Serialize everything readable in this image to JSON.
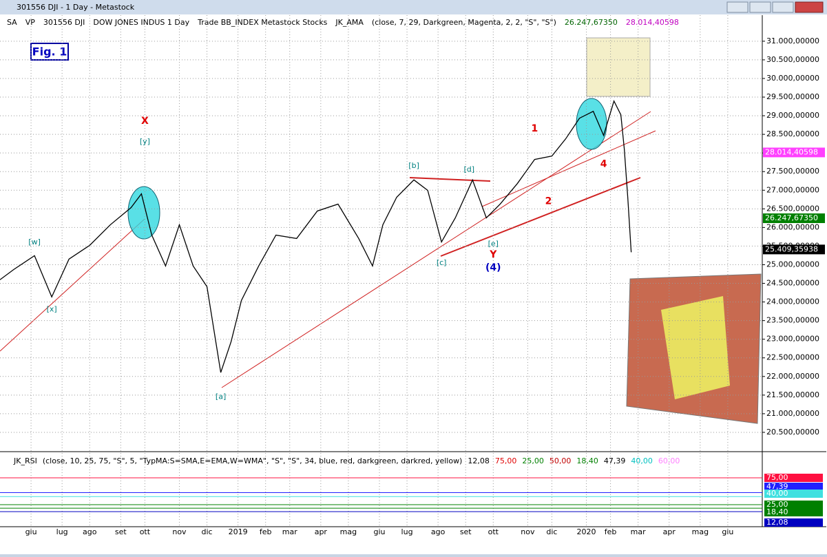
{
  "window": {
    "title": "301556 DJI - 1 Day - Metastock"
  },
  "toolbar": {
    "items": [
      {
        "text": "SA",
        "color": "#000000"
      },
      {
        "text": "VP",
        "color": "#000000"
      },
      {
        "text": "301556 DJI",
        "color": "#000000"
      },
      {
        "text": "DOW JONES INDUS 1 Day",
        "color": "#000000"
      },
      {
        "text": "Trade BB_INDEX Metastock Stocks",
        "color": "#000000"
      },
      {
        "text": "JK_AMA",
        "color": "#000000"
      },
      {
        "text": "(close, 7, 29, Darkgreen, Magenta, 2, 2, \"S\", \"S\")",
        "color": "#000000"
      },
      {
        "text": "26.247,67350",
        "color": "#006400"
      },
      {
        "text": "28.014,40598",
        "color": "#c000c0"
      }
    ]
  },
  "chart": {
    "type": "line",
    "fig_label": "Fig. 1",
    "x": [
      0,
      4,
      10,
      15,
      20,
      26,
      32,
      38,
      41,
      44,
      48,
      52,
      56,
      60,
      64,
      67,
      70,
      75,
      80,
      86,
      92,
      98,
      104,
      108,
      111,
      115,
      120,
      124,
      128,
      132,
      137,
      141,
      145,
      150,
      155,
      160,
      164,
      168,
      172,
      175,
      178,
      180,
      181,
      182,
      183
    ],
    "values": [
      24597,
      24873,
      25242,
      24135,
      25150,
      25520,
      26073,
      26534,
      26903,
      25796,
      24966,
      26073,
      24966,
      24412,
      22106,
      22935,
      24043,
      24966,
      25796,
      25704,
      26442,
      26627,
      25704,
      24966,
      26073,
      26811,
      27277,
      26996,
      25611,
      26257,
      27277,
      26257,
      26627,
      27180,
      27826,
      27918,
      28379,
      28933,
      29118,
      28471,
      29395,
      29026,
      28103,
      26811,
      25335
    ],
    "color": "#000000",
    "xlim": [
      0,
      221
    ],
    "ylim": [
      20000,
      31700
    ],
    "yticks": [
      {
        "value": 20500,
        "label": "20.500,00000"
      },
      {
        "value": 21000,
        "label": "21.000,00000"
      },
      {
        "value": 21500,
        "label": "21.500,00000"
      },
      {
        "value": 22000,
        "label": "22.000,00000"
      },
      {
        "value": 22500,
        "label": "22.500,00000"
      },
      {
        "value": 23000,
        "label": "23.000,00000"
      },
      {
        "value": 23500,
        "label": "23.500,00000"
      },
      {
        "value": 24000,
        "label": "24.000,00000"
      },
      {
        "value": 24500,
        "label": "24.500,00000"
      },
      {
        "value": 25000,
        "label": "25.000,00000"
      },
      {
        "value": 25500,
        "label": "25.500,00000"
      },
      {
        "value": 26000,
        "label": "26.000,00000"
      },
      {
        "value": 26500,
        "label": "26.500,00000"
      },
      {
        "value": 27000,
        "label": "27.000,00000"
      },
      {
        "value": 27500,
        "label": "27.500,00000"
      },
      {
        "value": 28000,
        "label": "28.000,00000"
      },
      {
        "value": 28500,
        "label": "28.500,00000"
      },
      {
        "value": 29000,
        "label": "29.000,00000"
      },
      {
        "value": 29500,
        "label": "29.500,00000"
      },
      {
        "value": 30000,
        "label": "30.000,00000"
      },
      {
        "value": 30500,
        "label": "30.500,00000"
      },
      {
        "value": 31000,
        "label": "31.000,00000"
      }
    ],
    "price_flags": [
      {
        "value": 28014.40598,
        "label": "28.014,40598",
        "color": "#ff40ff"
      },
      {
        "value": 26247.6735,
        "label": "26.247,67350",
        "color": "#008000"
      },
      {
        "value": 25409.35938,
        "label": "25.409,35938",
        "color": "#000000"
      }
    ],
    "xticks": [
      {
        "value": 9,
        "label": "giu"
      },
      {
        "value": 18,
        "label": "lug"
      },
      {
        "value": 26,
        "label": "ago"
      },
      {
        "value": 35,
        "label": "set"
      },
      {
        "value": 42,
        "label": "ott"
      },
      {
        "value": 52,
        "label": "nov"
      },
      {
        "value": 60,
        "label": "dic"
      },
      {
        "value": 69,
        "label": "2019"
      },
      {
        "value": 77,
        "label": "feb"
      },
      {
        "value": 84,
        "label": "mar"
      },
      {
        "value": 93,
        "label": "apr"
      },
      {
        "value": 101,
        "label": "mag"
      },
      {
        "value": 110,
        "label": "giu"
      },
      {
        "value": 118,
        "label": "lug"
      },
      {
        "value": 127,
        "label": "ago"
      },
      {
        "value": 135,
        "label": "set"
      },
      {
        "value": 143,
        "label": "ott"
      },
      {
        "value": 153,
        "label": "nov"
      },
      {
        "value": 160,
        "label": "dic"
      },
      {
        "value": 170,
        "label": "2020"
      },
      {
        "value": 177,
        "label": "feb"
      },
      {
        "value": 185,
        "label": "mar"
      },
      {
        "value": 194,
        "label": "apr"
      },
      {
        "value": 203,
        "label": "mag"
      },
      {
        "value": 211,
        "label": "giu"
      }
    ],
    "annotations": [
      {
        "text": "X",
        "x": 42,
        "y": 28850,
        "color": "#e00000"
      },
      {
        "text": "[y]",
        "x": 42,
        "y": 28300,
        "color": "#008080"
      },
      {
        "text": "[w]",
        "x": 10,
        "y": 25600,
        "color": "#008080"
      },
      {
        "text": "[x]",
        "x": 15,
        "y": 23800,
        "color": "#008080"
      },
      {
        "text": "[a]",
        "x": 64,
        "y": 21450,
        "color": "#008080"
      },
      {
        "text": "[b]",
        "x": 120,
        "y": 27650,
        "color": "#008080"
      },
      {
        "text": "[c]",
        "x": 128,
        "y": 25050,
        "color": "#008080"
      },
      {
        "text": "[d]",
        "x": 136,
        "y": 27550,
        "color": "#008080"
      },
      {
        "text": "[e]",
        "x": 143,
        "y": 25550,
        "color": "#008080"
      },
      {
        "text": "Y",
        "x": 143,
        "y": 25270,
        "color": "#e00000"
      },
      {
        "text": "(4)",
        "x": 143,
        "y": 24920,
        "color": "#0000c0"
      },
      {
        "text": "1",
        "x": 155,
        "y": 28650,
        "color": "#e00000"
      },
      {
        "text": "2",
        "x": 159,
        "y": 26700,
        "color": "#e00000"
      },
      {
        "text": "4",
        "x": 175,
        "y": 27700,
        "color": "#e00000"
      }
    ]
  },
  "rsi": {
    "header": [
      {
        "text": "JK_RSI",
        "color": "#000000"
      },
      {
        "text": "(close, 10, 25, 75, \"S\", 5, \"TypMA:S=SMA,E=EMA,W=WMA\", \"S\", \"S\", 34, blue, red, darkgreen, darkred, yellow)",
        "color": "#000000"
      },
      {
        "text": "12,08",
        "color": "#000000"
      },
      {
        "text": "75,00",
        "color": "#e00000"
      },
      {
        "text": "25,00",
        "color": "#008000"
      },
      {
        "text": "50,00",
        "color": "#c00000"
      },
      {
        "text": "18,40",
        "color": "#008000"
      },
      {
        "text": "47,39",
        "color": "#000000"
      },
      {
        "text": "40,00",
        "color": "#00c0c0"
      },
      {
        "text": "60,00",
        "color": "#ff80ff"
      }
    ],
    "ylim": [
      0,
      100
    ],
    "levels": [
      {
        "value": 75,
        "label": "75,00",
        "color": "#ff1040"
      },
      {
        "value": 47.39,
        "label": "47,39",
        "color": "#2020ff"
      },
      {
        "value": 40,
        "label": "40,00",
        "color": "#40e0e0"
      },
      {
        "value": 25,
        "label": "25,00",
        "color": "#008000"
      },
      {
        "value": 18.4,
        "label": "18,40",
        "color": "#008000"
      },
      {
        "value": 12.08,
        "label": "12,08",
        "color": "#0000c0"
      }
    ]
  }
}
